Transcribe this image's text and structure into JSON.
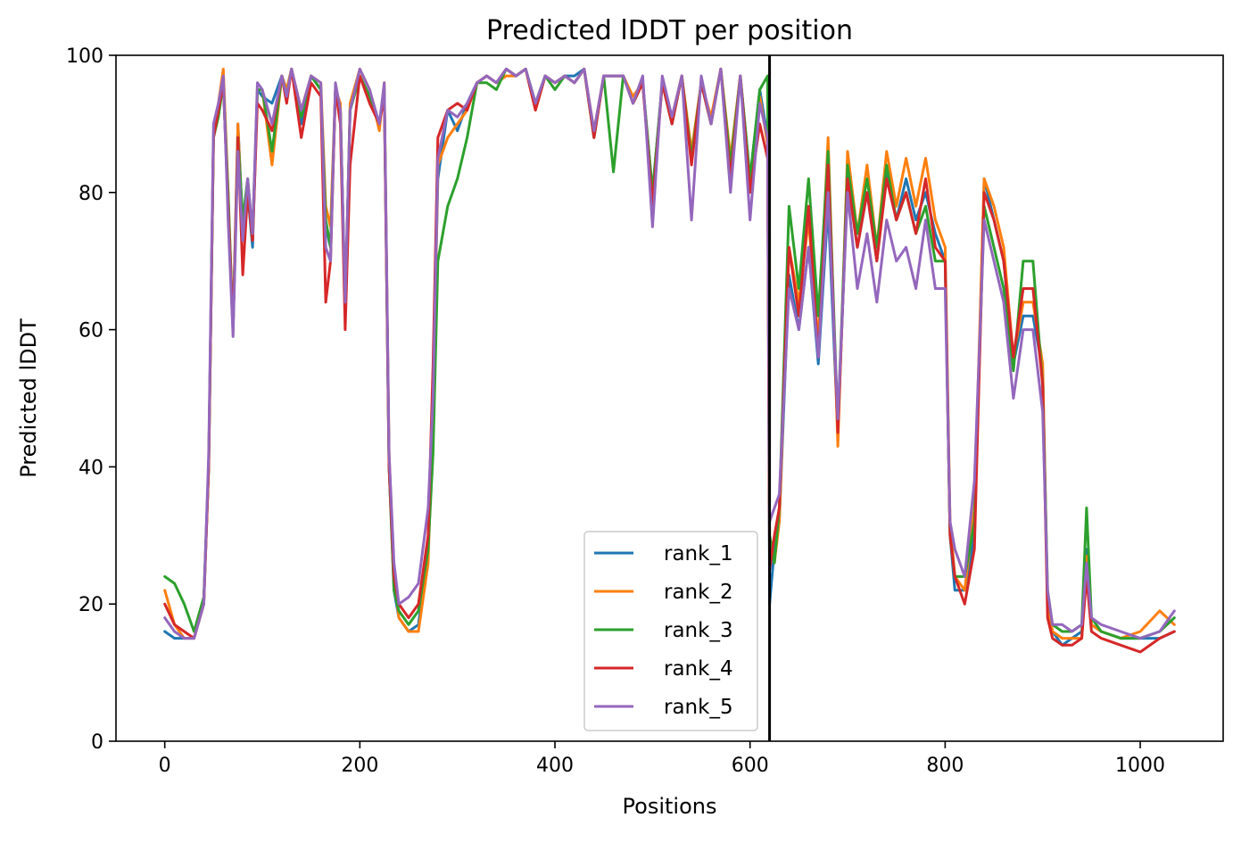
{
  "chart_data": {
    "type": "line",
    "title": "Predicted lDDT per position",
    "xlabel": "Positions",
    "ylabel": "Predicted lDDT",
    "xlim": [
      -50,
      1085
    ],
    "ylim": [
      0,
      100
    ],
    "xticks": [
      0,
      200,
      400,
      600,
      800,
      1000
    ],
    "yticks": [
      0,
      20,
      40,
      60,
      80,
      100
    ],
    "grid": false,
    "legend_position": "lower-right",
    "chain_break_x": 620,
    "x": [
      0,
      10,
      20,
      30,
      40,
      45,
      50,
      55,
      60,
      65,
      70,
      75,
      80,
      85,
      90,
      95,
      100,
      110,
      120,
      125,
      130,
      140,
      150,
      160,
      165,
      170,
      175,
      180,
      185,
      190,
      200,
      210,
      220,
      225,
      230,
      235,
      240,
      250,
      260,
      270,
      275,
      280,
      290,
      300,
      310,
      320,
      330,
      340,
      350,
      360,
      370,
      380,
      390,
      400,
      410,
      420,
      430,
      440,
      450,
      460,
      470,
      480,
      490,
      500,
      510,
      520,
      530,
      540,
      550,
      560,
      570,
      580,
      590,
      600,
      610,
      618,
      620,
      625,
      630,
      640,
      650,
      660,
      670,
      680,
      690,
      700,
      710,
      720,
      730,
      740,
      750,
      760,
      770,
      780,
      790,
      800,
      805,
      810,
      820,
      830,
      840,
      850,
      860,
      870,
      880,
      890,
      900,
      905,
      910,
      920,
      930,
      940,
      945,
      950,
      960,
      980,
      1000,
      1020,
      1035
    ],
    "series": [
      {
        "name": "rank_1",
        "color": "#1f77b4",
        "values": [
          16,
          15,
          15,
          15,
          20,
          40,
          88,
          92,
          96,
          78,
          60,
          90,
          75,
          80,
          72,
          95,
          94,
          93,
          97,
          95,
          98,
          90,
          97,
          95,
          75,
          72,
          95,
          92,
          63,
          92,
          97,
          94,
          90,
          95,
          40,
          22,
          18,
          16,
          17,
          28,
          50,
          82,
          92,
          89,
          93,
          96,
          97,
          96,
          98,
          97,
          98,
          93,
          97,
          96,
          97,
          97,
          98,
          88,
          97,
          97,
          97,
          93,
          96,
          80,
          96,
          90,
          97,
          85,
          96,
          90,
          98,
          84,
          97,
          82,
          95,
          88,
          20,
          28,
          32,
          68,
          60,
          72,
          55,
          78,
          45,
          82,
          72,
          80,
          70,
          83,
          76,
          82,
          76,
          80,
          74,
          70,
          30,
          22,
          22,
          30,
          82,
          76,
          70,
          55,
          62,
          62,
          54,
          20,
          16,
          14,
          15,
          16,
          28,
          17,
          16,
          15,
          15,
          15,
          16
        ]
      },
      {
        "name": "rank_2",
        "color": "#ff7f0e",
        "values": [
          22,
          17,
          15,
          15,
          20,
          40,
          88,
          93,
          98,
          80,
          60,
          90,
          74,
          82,
          73,
          95,
          95,
          84,
          97,
          95,
          98,
          92,
          97,
          96,
          78,
          75,
          95,
          93,
          62,
          93,
          98,
          95,
          89,
          96,
          42,
          24,
          18,
          16,
          16,
          26,
          48,
          84,
          88,
          90,
          92,
          96,
          97,
          96,
          97,
          97,
          98,
          92,
          97,
          96,
          97,
          96,
          98,
          89,
          97,
          97,
          97,
          94,
          96,
          78,
          96,
          91,
          97,
          86,
          96,
          91,
          98,
          85,
          97,
          81,
          94,
          87,
          30,
          26,
          32,
          72,
          64,
          76,
          58,
          88,
          43,
          86,
          74,
          84,
          72,
          86,
          78,
          85,
          78,
          85,
          76,
          72,
          32,
          24,
          22,
          34,
          82,
          78,
          72,
          56,
          64,
          64,
          55,
          20,
          16,
          15,
          15,
          15,
          27,
          17,
          16,
          15,
          16,
          19,
          17
        ]
      },
      {
        "name": "rank_3",
        "color": "#2ca02c",
        "values": [
          24,
          23,
          20,
          16,
          21,
          40,
          88,
          91,
          96,
          80,
          60,
          88,
          76,
          82,
          74,
          95,
          95,
          86,
          97,
          94,
          98,
          91,
          97,
          95,
          76,
          72,
          95,
          92,
          63,
          92,
          97,
          94,
          90,
          95,
          40,
          22,
          19,
          17,
          19,
          28,
          42,
          70,
          78,
          82,
          88,
          96,
          96,
          95,
          98,
          97,
          98,
          93,
          97,
          95,
          97,
          96,
          98,
          88,
          97,
          83,
          97,
          93,
          96,
          80,
          96,
          90,
          97,
          85,
          96,
          90,
          98,
          84,
          97,
          82,
          95,
          97,
          30,
          26,
          34,
          78,
          66,
          82,
          62,
          86,
          46,
          84,
          74,
          82,
          72,
          84,
          76,
          80,
          74,
          78,
          70,
          70,
          30,
          24,
          24,
          32,
          78,
          72,
          66,
          54,
          70,
          70,
          52,
          22,
          17,
          16,
          16,
          17,
          34,
          18,
          16,
          15,
          15,
          16,
          18
        ]
      },
      {
        "name": "rank_4",
        "color": "#d62728",
        "values": [
          20,
          17,
          16,
          15,
          20,
          40,
          88,
          92,
          96,
          78,
          60,
          88,
          68,
          80,
          73,
          93,
          92,
          89,
          97,
          93,
          98,
          88,
          96,
          94,
          64,
          70,
          95,
          90,
          60,
          84,
          97,
          93,
          90,
          94,
          40,
          24,
          20,
          18,
          20,
          30,
          55,
          88,
          92,
          93,
          92,
          96,
          97,
          96,
          98,
          97,
          98,
          92,
          97,
          96,
          97,
          96,
          98,
          88,
          97,
          97,
          97,
          93,
          96,
          78,
          96,
          90,
          97,
          84,
          96,
          90,
          98,
          82,
          97,
          80,
          90,
          85,
          25,
          30,
          34,
          72,
          62,
          78,
          56,
          84,
          45,
          82,
          72,
          80,
          70,
          82,
          76,
          80,
          74,
          82,
          72,
          70,
          30,
          24,
          20,
          28,
          80,
          76,
          70,
          56,
          66,
          66,
          52,
          18,
          15,
          14,
          14,
          15,
          24,
          16,
          15,
          14,
          13,
          15,
          16
        ]
      },
      {
        "name": "rank_5",
        "color": "#9467bd",
        "values": [
          18,
          16,
          15,
          15,
          20,
          42,
          90,
          93,
          97,
          76,
          59,
          86,
          73,
          82,
          74,
          96,
          95,
          90,
          97,
          94,
          98,
          92,
          97,
          96,
          72,
          70,
          96,
          92,
          64,
          92,
          98,
          95,
          90,
          96,
          42,
          26,
          20,
          21,
          23,
          34,
          50,
          85,
          92,
          91,
          93,
          96,
          97,
          96,
          98,
          97,
          98,
          93,
          97,
          96,
          97,
          96,
          98,
          89,
          97,
          97,
          97,
          93,
          97,
          75,
          97,
          91,
          97,
          76,
          97,
          90,
          98,
          80,
          97,
          76,
          93,
          88,
          32,
          34,
          36,
          66,
          60,
          72,
          56,
          80,
          47,
          80,
          66,
          74,
          64,
          76,
          70,
          72,
          66,
          76,
          66,
          66,
          32,
          28,
          24,
          38,
          76,
          70,
          64,
          50,
          60,
          60,
          48,
          22,
          17,
          17,
          16,
          17,
          26,
          18,
          17,
          16,
          15,
          16,
          19
        ]
      }
    ]
  }
}
